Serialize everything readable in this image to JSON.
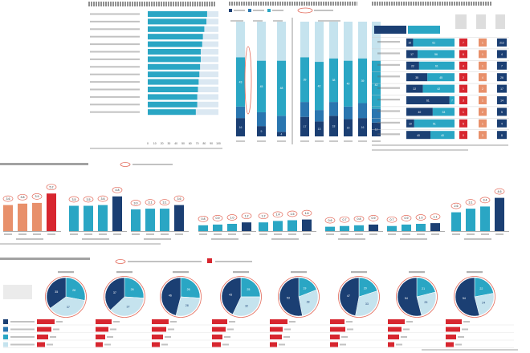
{
  "colors": {
    "dark": "#1b3f73",
    "mid": "#2a76b0",
    "teal": "#2aa6c4",
    "light": "#c5e3ee",
    "pale": "#dbe8f2",
    "orange": "#e8906b",
    "red": "#d7262f",
    "ring": "#e36a5a"
  },
  "hbar": {
    "type": "bar",
    "categories": [
      "c1",
      "c2",
      "c3",
      "c4",
      "c5",
      "c6",
      "c7",
      "c8",
      "c9",
      "c10",
      "c11",
      "c12",
      "c13",
      "c14"
    ],
    "values": [
      84,
      83,
      80,
      78,
      77,
      75,
      75,
      74,
      73,
      72,
      71,
      70,
      70,
      68
    ],
    "xticks": [
      "0",
      "10",
      "20",
      "30",
      "40",
      "50",
      "60",
      "70",
      "80",
      "90",
      "100"
    ],
    "xlim": [
      0,
      100
    ]
  },
  "stack": {
    "type": "bar",
    "groups": [
      {
        "columns": [
          [
            16,
            10,
            43,
            31
          ]
        ]
      },
      {
        "columns": [
          [
            9,
            12,
            45,
            34
          ]
        ]
      },
      {
        "columns": [
          [
            4,
            14,
            48,
            34
          ]
        ]
      },
      {
        "columns": [
          [
            17,
            13,
            39,
            31
          ],
          [
            13,
            10,
            42,
            35
          ],
          [
            18,
            12,
            38,
            32
          ],
          [
            15,
            11,
            40,
            34
          ],
          [
            16,
            13,
            39,
            32
          ],
          [
            12,
            12,
            42,
            34
          ]
        ]
      }
    ],
    "labels_shown": [
      "31",
      "43",
      "34",
      "45",
      "34",
      "48",
      "17",
      "39",
      "13",
      "42",
      "18",
      "38",
      "15",
      "40",
      "16",
      "39",
      "12",
      "42"
    ]
  },
  "table": {
    "rows": [
      {
        "a": "10",
        "b": "61",
        "c": "7",
        "d": "1",
        "e": "212"
      },
      {
        "a": "17",
        "b": "56",
        "c": "6",
        "d": "1",
        "e": "4"
      },
      {
        "a": "22",
        "b": "61",
        "c": "4",
        "d": "1",
        "e": "7"
      },
      {
        "a": "35",
        "b": "45",
        "c": "2",
        "d": "4",
        "e": "26"
      },
      {
        "a": "22",
        "b": "42",
        "c": "1",
        "d": "2",
        "e": "17"
      },
      {
        "a": "61",
        "b": "7",
        "c": "3",
        "d": "1",
        "e": "14"
      },
      {
        "a": "40",
        "b": "33",
        "c": "1",
        "d": "2",
        "e": "5"
      },
      {
        "a": "10",
        "b": "51",
        "c": "5",
        "d": "1",
        "e": "4"
      },
      {
        "a": "40",
        "b": "40",
        "c": "0",
        "d": "3",
        "e": "8"
      }
    ]
  },
  "groups_chart": {
    "type": "bar",
    "ylim": [
      0,
      7
    ],
    "groups": [
      {
        "values": [
          3.6,
          3.8,
          3.9,
          5.2
        ],
        "labels": [
          "3.6",
          "3.8",
          "3.9",
          "5.2"
        ]
      },
      {
        "values": [
          3.5,
          3.5,
          3.6,
          4.8
        ],
        "labels": [
          "3.5",
          "3.5",
          "3.6",
          "4.8"
        ]
      },
      {
        "values": [
          3.0,
          3.1,
          3.1,
          3.6
        ],
        "labels": [
          "3.0",
          "3.1",
          "3.1",
          "3.6"
        ]
      },
      {
        "values": [
          0.8,
          0.9,
          1.0,
          1.2
        ],
        "labels": [
          "0.8",
          "0.9",
          "1.0",
          "1.2"
        ]
      },
      {
        "values": [
          1.2,
          1.4,
          1.5,
          1.6
        ],
        "labels": [
          "1.2",
          "1.4",
          "1.5",
          "1.6"
        ]
      },
      {
        "values": [
          0.6,
          0.7,
          0.8,
          0.9
        ],
        "labels": [
          "0.6",
          "0.7",
          "0.8",
          "0.9"
        ]
      },
      {
        "values": [
          0.7,
          0.9,
          1.0,
          1.1
        ],
        "labels": [
          "0.7",
          "0.9",
          "1.0",
          "1.1"
        ]
      },
      {
        "values": [
          2.6,
          3.1,
          3.4,
          4.6
        ],
        "labels": [
          "2.6",
          "3.1",
          "3.4",
          "4.6"
        ]
      }
    ]
  },
  "pies": {
    "type": "pie",
    "items": [
      {
        "slices": [
          28,
          37,
          35
        ],
        "bars": [
          22,
          18,
          14,
          10
        ]
      },
      {
        "slices": [
          26,
          37,
          37
        ],
        "bars": [
          20,
          16,
          12,
          9
        ]
      },
      {
        "slices": [
          26,
          28,
          46
        ],
        "bars": [
          21,
          18,
          14,
          10
        ]
      },
      {
        "slices": [
          25,
          32,
          43
        ],
        "bars": [
          19,
          17,
          13,
          11
        ]
      },
      {
        "slices": [
          19,
          28,
          53
        ],
        "bars": [
          22,
          16,
          15,
          9
        ]
      },
      {
        "slices": [
          20,
          33,
          47
        ],
        "bars": [
          18,
          19,
          12,
          10
        ]
      },
      {
        "slices": [
          21,
          25,
          54
        ],
        "bars": [
          21,
          17,
          14,
          8
        ]
      },
      {
        "slices": [
          22,
          24,
          54
        ],
        "bars": [
          20,
          18,
          13,
          10
        ]
      }
    ]
  }
}
